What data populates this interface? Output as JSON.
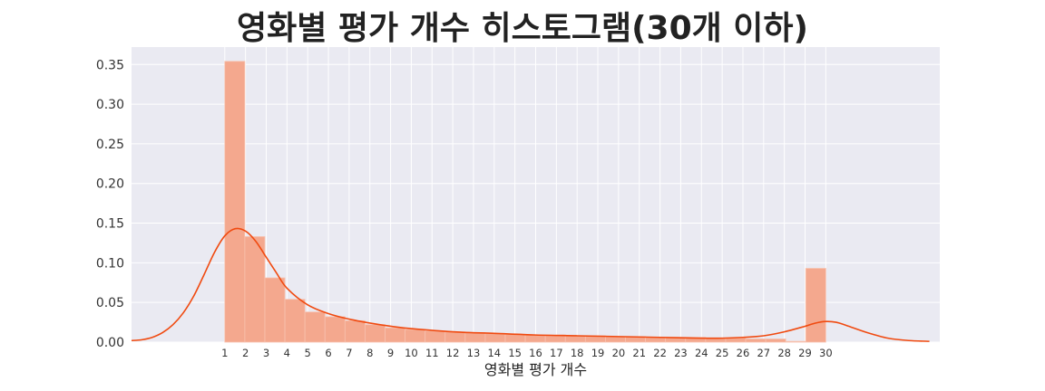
{
  "chart_data": {
    "type": "bar",
    "title": "영화별 평가 개수 히스토그램(30개 이하)",
    "xlabel": "영화별 평가 개수",
    "ylabel": "",
    "x_ticks": [
      "1",
      "2",
      "3",
      "4",
      "5",
      "6",
      "7",
      "8",
      "9",
      "10",
      "11",
      "12",
      "13",
      "14",
      "15",
      "16",
      "17",
      "18",
      "19",
      "20",
      "21",
      "22",
      "23",
      "24",
      "25",
      "26",
      "27",
      "28",
      "29",
      "30"
    ],
    "y_ticks": [
      "0.00",
      "0.05",
      "0.10",
      "0.15",
      "0.20",
      "0.25",
      "0.30",
      "0.35"
    ],
    "xlim": [
      -3.5,
      35.5
    ],
    "ylim": [
      0,
      0.372
    ],
    "bins": {
      "start": 1,
      "width": 0.9667,
      "values": [
        0.354,
        0.133,
        0.081,
        0.054,
        0.038,
        0.032,
        0.027,
        0.022,
        0.018,
        0.016,
        0.014,
        0.013,
        0.012,
        0.011,
        0.01,
        0.009,
        0.009,
        0.008,
        0.008,
        0.007,
        0.007,
        0.006,
        0.006,
        0.006,
        0.005,
        0.005,
        0.004,
        0.004,
        0.001,
        0.093
      ]
    },
    "kde": {
      "x": [
        -3.5,
        -3,
        -2.5,
        -2,
        -1.5,
        -1,
        -0.5,
        0,
        0.5,
        1,
        1.5,
        2,
        2.5,
        3,
        3.5,
        4,
        5,
        6,
        7,
        8,
        9,
        10,
        12,
        14,
        16,
        18,
        20,
        22,
        24,
        25,
        26,
        27,
        28,
        29,
        29.5,
        30,
        30.5,
        31,
        32,
        33,
        34,
        35
      ],
      "y": [
        0.002,
        0.003,
        0.006,
        0.012,
        0.022,
        0.037,
        0.058,
        0.085,
        0.113,
        0.134,
        0.143,
        0.14,
        0.127,
        0.107,
        0.087,
        0.068,
        0.047,
        0.036,
        0.029,
        0.024,
        0.02,
        0.017,
        0.013,
        0.011,
        0.009,
        0.008,
        0.007,
        0.006,
        0.005,
        0.005,
        0.006,
        0.008,
        0.013,
        0.02,
        0.024,
        0.026,
        0.025,
        0.021,
        0.012,
        0.005,
        0.002,
        0.001
      ]
    },
    "grid": true,
    "colors": {
      "background": "#EAEAF2",
      "grid": "#FFFFFF",
      "bar": "#F4A88E",
      "bar_edge": "#F7C2B0",
      "kde": "#F04A10"
    }
  }
}
